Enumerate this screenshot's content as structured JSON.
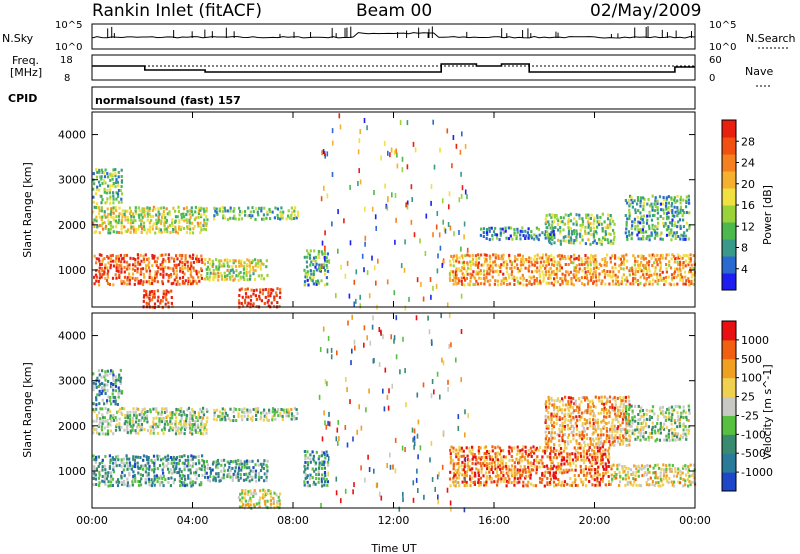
{
  "header": {
    "station": "Rankin Inlet (fitACF)",
    "beam": "Beam 00",
    "date": "02/May/2009"
  },
  "nsky_panel": {
    "left_label": "N.Sky",
    "left_ticks": [
      "10^5",
      "10^0"
    ],
    "right_ticks": [
      "10^5",
      "10^0"
    ],
    "right_label": "N.Search"
  },
  "freq_panel": {
    "left_label_1": "Freq.",
    "left_label_2": "[MHz]",
    "left_ticks": [
      "18",
      "8"
    ],
    "right_ticks": [
      "60",
      "0"
    ],
    "right_label": "Nave"
  },
  "cpid_panel": {
    "label": "CPID",
    "program": "normalsound (fast) 157"
  },
  "chart_data": [
    {
      "type": "heatmap",
      "name": "power-panel",
      "ylabel": "Slant Range [km]",
      "y_ticks": [
        "1000",
        "2000",
        "3000",
        "4000"
      ],
      "y_tick_values": [
        1000,
        2000,
        3000,
        4000
      ],
      "ylim": [
        180,
        4500
      ],
      "xlim_hours": [
        0,
        24
      ],
      "colorbar_label": "Power [dB]",
      "colorbar_ticks": [
        "4",
        "8",
        "12",
        "16",
        "20",
        "24",
        "28"
      ],
      "colorbar_colors": [
        "#1e1ef0",
        "#2a6ad0",
        "#3a9a8a",
        "#4db84d",
        "#9ad23a",
        "#f0e040",
        "#f6b030",
        "#f58020",
        "#f05010",
        "#e82010"
      ],
      "bands": [
        {
          "x0": 0.0,
          "x1": 4.4,
          "y0": 700,
          "y1": 1400,
          "level": 0.85
        },
        {
          "x0": 4.4,
          "x1": 7.0,
          "y0": 800,
          "y1": 1300,
          "level": 0.5
        },
        {
          "x0": 0.0,
          "x1": 4.6,
          "y0": 1850,
          "y1": 2450,
          "level": 0.5
        },
        {
          "x0": 0.0,
          "x1": 1.2,
          "y0": 2500,
          "y1": 3300,
          "level": 0.35
        },
        {
          "x0": 4.8,
          "x1": 8.2,
          "y0": 2150,
          "y1": 2450,
          "level": 0.35
        },
        {
          "x0": 5.8,
          "x1": 7.5,
          "y0": 200,
          "y1": 650,
          "level": 0.95
        },
        {
          "x0": 2.0,
          "x1": 3.2,
          "y0": 200,
          "y1": 600,
          "level": 0.9
        },
        {
          "x0": 8.4,
          "x1": 9.4,
          "y0": 700,
          "y1": 1500,
          "level": 0.3
        },
        {
          "x0": 14.2,
          "x1": 24.0,
          "y0": 700,
          "y1": 1400,
          "level": 0.7
        },
        {
          "x0": 18.0,
          "x1": 20.8,
          "y0": 1600,
          "y1": 2300,
          "level": 0.4
        },
        {
          "x0": 21.2,
          "x1": 23.8,
          "y0": 1700,
          "y1": 2700,
          "level": 0.3
        },
        {
          "x0": 15.4,
          "x1": 18.4,
          "y0": 1700,
          "y1": 2000,
          "level": 0.25
        }
      ]
    },
    {
      "type": "heatmap",
      "name": "velocity-panel",
      "ylabel": "Slant Range [km]",
      "y_ticks": [
        "1000",
        "2000",
        "3000",
        "4000"
      ],
      "y_tick_values": [
        1000,
        2000,
        3000,
        4000
      ],
      "ylim": [
        180,
        4500
      ],
      "xlim_hours": [
        0,
        24
      ],
      "x_ticks": [
        "00:00",
        "04:00",
        "08:00",
        "12:00",
        "16:00",
        "20:00",
        "00:00"
      ],
      "x_tick_values": [
        0,
        4,
        8,
        12,
        16,
        20,
        24
      ],
      "xlabel": "Time UT",
      "colorbar_label": "Velocity [m s^-1]",
      "colorbar_ticks": [
        "1000",
        "500",
        "100",
        "25",
        "-25",
        "-100",
        "-500",
        "-1000"
      ],
      "colorbar_colors": [
        "#1e46c8",
        "#2a7a9a",
        "#3a8a70",
        "#58c040",
        "#c8c8c4",
        "#f0d050",
        "#f0a020",
        "#f06010",
        "#e81010"
      ],
      "bands": [
        {
          "x0": 0.0,
          "x1": 4.4,
          "y0": 700,
          "y1": 1400,
          "level": 0.3
        },
        {
          "x0": 4.4,
          "x1": 7.0,
          "y0": 800,
          "y1": 1300,
          "level": 0.3
        },
        {
          "x0": 0.0,
          "x1": 4.6,
          "y0": 1850,
          "y1": 2450,
          "level": 0.45
        },
        {
          "x0": 0.0,
          "x1": 1.2,
          "y0": 2500,
          "y1": 3300,
          "level": 0.3
        },
        {
          "x0": 4.8,
          "x1": 8.2,
          "y0": 2150,
          "y1": 2450,
          "level": 0.45
        },
        {
          "x0": 5.8,
          "x1": 7.5,
          "y0": 200,
          "y1": 650,
          "level": 0.55
        },
        {
          "x0": 8.4,
          "x1": 9.4,
          "y0": 700,
          "y1": 1500,
          "level": 0.3
        },
        {
          "x0": 14.2,
          "x1": 20.6,
          "y0": 700,
          "y1": 1600,
          "level": 0.8
        },
        {
          "x0": 18.0,
          "x1": 21.4,
          "y0": 1600,
          "y1": 2700,
          "level": 0.7
        },
        {
          "x0": 21.2,
          "x1": 23.8,
          "y0": 1700,
          "y1": 2500,
          "level": 0.45
        },
        {
          "x0": 20.6,
          "x1": 24.0,
          "y0": 700,
          "y1": 1200,
          "level": 0.6
        }
      ]
    }
  ]
}
